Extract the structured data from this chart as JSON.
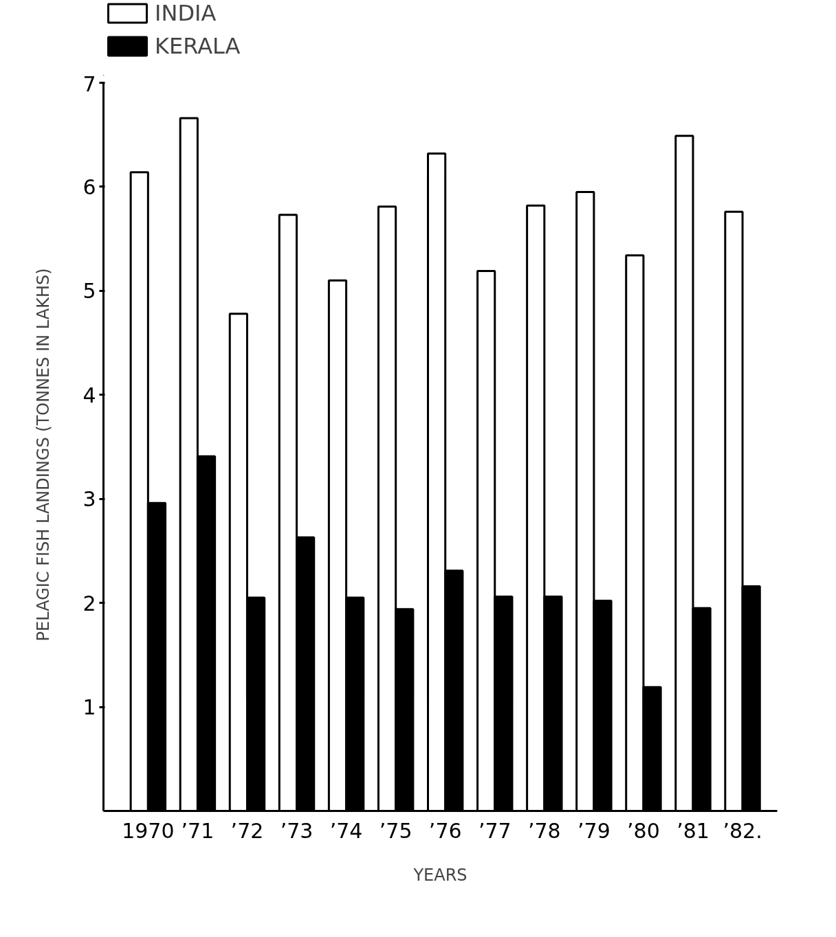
{
  "chart_data": {
    "type": "bar",
    "xlabel": "YEARS",
    "ylabel": "PELAGIC FISH LANDINGS    (TONNES IN LAKHS)",
    "categories": [
      "1970",
      "’71",
      "’72",
      "’73",
      "’74",
      "’75",
      "’76",
      "’77",
      "’78",
      "’79",
      "’80",
      "’81",
      "’82."
    ],
    "series": [
      {
        "name": "INDIA",
        "color": "#ffffff",
        "values": [
          6.14,
          6.66,
          4.78,
          5.73,
          5.1,
          5.81,
          6.32,
          5.19,
          5.82,
          5.95,
          5.34,
          6.49,
          5.76
        ]
      },
      {
        "name": "KERALA",
        "color": "#000000",
        "values": [
          2.96,
          3.41,
          2.05,
          2.63,
          2.05,
          1.94,
          2.31,
          2.06,
          2.06,
          2.02,
          1.19,
          1.95,
          2.16
        ]
      }
    ],
    "ylim": [
      0,
      7
    ],
    "yticks": [
      1,
      2,
      3,
      4,
      5,
      6,
      7
    ],
    "grid": false,
    "legend": "top left"
  }
}
